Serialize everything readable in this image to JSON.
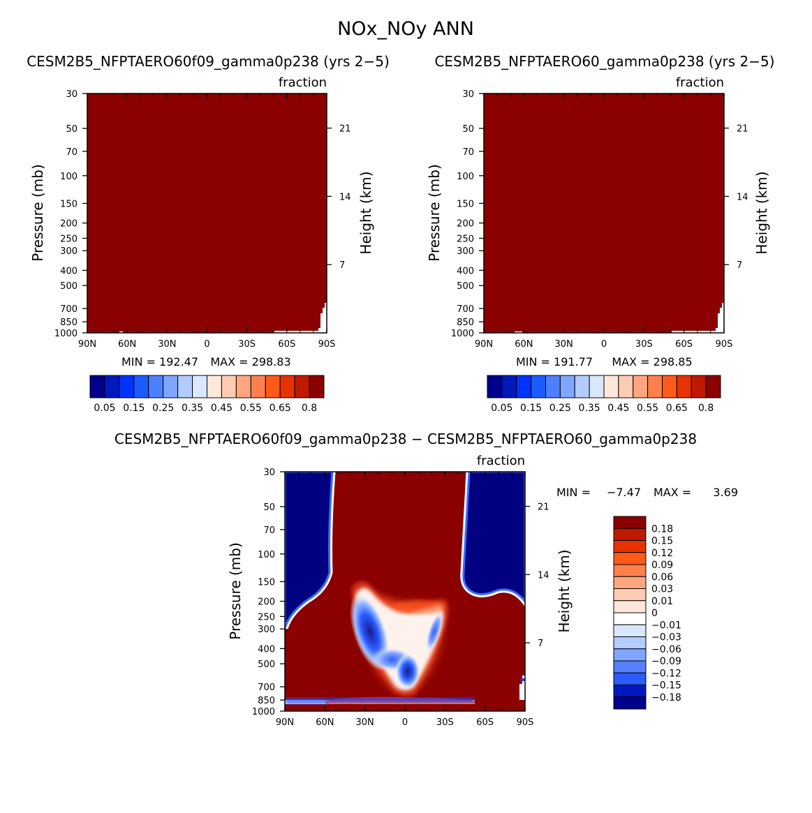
{
  "title": "NOx_NOy ANN",
  "colors": {
    "dark_red": "#8b0000",
    "navy": "#000080",
    "seq_palette": [
      "#00008c",
      "#0019bf",
      "#0033ff",
      "#1a5cff",
      "#4d80ff",
      "#80a6ff",
      "#b3ccff",
      "#d9e8ff",
      "#ffe8d9",
      "#ffccb3",
      "#ffa680",
      "#ff804d",
      "#ff5a1a",
      "#e63300",
      "#bf1900",
      "#8c0000"
    ],
    "diff_palette": [
      "#00008c",
      "#0019bf",
      "#0033e6",
      "#0a40ff",
      "#2a5cff",
      "#5580ff",
      "#80a6ff",
      "#b3ccff",
      "#d9e8ff",
      "#ffffff",
      "#ffe8d9",
      "#ffccb3",
      "#ffa680",
      "#ff804d",
      "#ff5a1a",
      "#e63300",
      "#bf1900",
      "#8c0000"
    ]
  },
  "chart_data": [
    {
      "type": "heatmap",
      "title": "CESM2B5_NFPTAERO60f09_gamma0p238 (yrs 2−5)",
      "units": "fraction",
      "ylabel": "Pressure (mb)",
      "y2label": "Height (km)",
      "x_ticks": [
        "90N",
        "60N",
        "30N",
        "0",
        "30S",
        "60S",
        "90S"
      ],
      "y_ticks": [
        30,
        50,
        70,
        100,
        150,
        200,
        250,
        300,
        400,
        500,
        700,
        850,
        1000
      ],
      "y2_ticks": [
        21,
        14,
        7
      ],
      "min_label": "MIN = 192.47",
      "max_label": "MAX = 298.83",
      "colorbar_labels": [
        "0.05",
        "0.15",
        "0.25",
        "0.35",
        "0.45",
        "0.55",
        "0.65",
        "0.8"
      ]
    },
    {
      "type": "heatmap",
      "title": "CESM2B5_NFPTAERO60_gamma0p238 (yrs 2−5)",
      "units": "fraction",
      "ylabel": "Pressure (mb)",
      "y2label": "Height (km)",
      "x_ticks": [
        "90N",
        "60N",
        "30N",
        "0",
        "30S",
        "60S",
        "90S"
      ],
      "y_ticks": [
        30,
        50,
        70,
        100,
        150,
        200,
        250,
        300,
        400,
        500,
        700,
        850,
        1000
      ],
      "y2_ticks": [
        21,
        14,
        7
      ],
      "min_label": "MIN = 191.77",
      "max_label": "MAX = 298.85",
      "colorbar_labels": [
        "0.05",
        "0.15",
        "0.25",
        "0.35",
        "0.45",
        "0.55",
        "0.65",
        "0.8"
      ]
    },
    {
      "type": "heatmap",
      "title": "CESM2B5_NFPTAERO60f09_gamma0p238 − CESM2B5_NFPTAERO60_gamma0p238",
      "units": "fraction",
      "ylabel": "Pressure (mb)",
      "y2label": "Height (km)",
      "x_ticks": [
        "90N",
        "60N",
        "30N",
        "0",
        "30S",
        "60S",
        "90S"
      ],
      "y_ticks": [
        30,
        50,
        70,
        100,
        150,
        200,
        250,
        300,
        400,
        500,
        700,
        850,
        1000
      ],
      "y2_ticks": [
        21,
        14,
        7
      ],
      "min_label": "MIN =",
      "min_value": "−7.47",
      "max_label": "MAX =",
      "max_value": "3.69",
      "colorbar_labels": [
        "0.18",
        "0.15",
        "0.12",
        "0.09",
        "0.06",
        "0.03",
        "0.01",
        "0",
        "−0.01",
        "−0.03",
        "−0.06",
        "−0.09",
        "−0.12",
        "−0.15",
        "−0.18"
      ]
    }
  ]
}
